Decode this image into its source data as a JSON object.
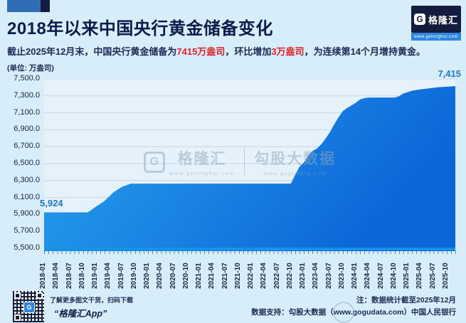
{
  "header": {
    "title": "2018年以来中国央行黄金储备变化",
    "logo": {
      "symbol": "G",
      "name": "格隆汇",
      "url": "www.gelonghui.com"
    }
  },
  "subtitle": {
    "part1": "截止2025年12月末，中国央行黄金储备为",
    "highlight1": "7415万盎司",
    "part2": "，环比增加",
    "highlight2": "3万盎司",
    "part3": "，为连续第14个月增持黄金。"
  },
  "chart_data": {
    "type": "area",
    "title": "2018年以来中国央行黄金储备变化",
    "unit_label": "(单位: 万盎司)",
    "ylabel": "万盎司",
    "ylim": [
      5500,
      7500
    ],
    "y_tick_step": 200,
    "grid": true,
    "y_tick_labels": [
      "7,500.0",
      "7,300.0",
      "7,100.0",
      "6,900.0",
      "6,700.0",
      "6,500.0",
      "6,300.0",
      "6,100.0",
      "5,900.0",
      "5,700.0",
      "5,500.0"
    ],
    "x_tick_labels": [
      "2018-01",
      "2018-04",
      "2018-07",
      "2018-10",
      "2019-01",
      "2019-04",
      "2019-07",
      "2019-10",
      "2020-01",
      "2020-04",
      "2020-07",
      "2020-10",
      "2021-01",
      "2021-04",
      "2021-07",
      "2021-10",
      "2022-01",
      "2022-04",
      "2022-07",
      "2022-10",
      "2023-01",
      "2023-04",
      "2023-07",
      "2023-10",
      "2024-01",
      "2024-04",
      "2024-07",
      "2024-10",
      "2025-01",
      "2025-04",
      "2025-07",
      "2025-10"
    ],
    "x_tick_every_n_months": 3,
    "x": [
      "2018-01",
      "2018-02",
      "2018-03",
      "2018-04",
      "2018-05",
      "2018-06",
      "2018-07",
      "2018-08",
      "2018-09",
      "2018-10",
      "2018-11",
      "2018-12",
      "2019-01",
      "2019-02",
      "2019-03",
      "2019-04",
      "2019-05",
      "2019-06",
      "2019-07",
      "2019-08",
      "2019-09",
      "2019-10",
      "2019-11",
      "2019-12",
      "2020-01",
      "2020-02",
      "2020-03",
      "2020-04",
      "2020-05",
      "2020-06",
      "2020-07",
      "2020-08",
      "2020-09",
      "2020-10",
      "2020-11",
      "2020-12",
      "2021-01",
      "2021-02",
      "2021-03",
      "2021-04",
      "2021-05",
      "2021-06",
      "2021-07",
      "2021-08",
      "2021-09",
      "2021-10",
      "2021-11",
      "2021-12",
      "2022-01",
      "2022-02",
      "2022-03",
      "2022-04",
      "2022-05",
      "2022-06",
      "2022-07",
      "2022-08",
      "2022-09",
      "2022-10",
      "2022-11",
      "2022-12",
      "2023-01",
      "2023-02",
      "2023-03",
      "2023-04",
      "2023-05",
      "2023-06",
      "2023-07",
      "2023-08",
      "2023-09",
      "2023-10",
      "2023-11",
      "2023-12",
      "2024-01",
      "2024-02",
      "2024-03",
      "2024-04",
      "2024-05",
      "2024-06",
      "2024-07",
      "2024-08",
      "2024-09",
      "2024-10",
      "2024-11",
      "2024-12",
      "2025-01",
      "2025-02",
      "2025-03",
      "2025-04",
      "2025-05",
      "2025-06",
      "2025-07",
      "2025-08",
      "2025-09",
      "2025-10",
      "2025-11",
      "2025-12"
    ],
    "values": [
      5924,
      5924,
      5924,
      5924,
      5924,
      5924,
      5924,
      5924,
      5924,
      5924,
      5924,
      5956,
      5994,
      6026,
      6062,
      6110,
      6161,
      6194,
      6226,
      6245,
      6264,
      6264,
      6264,
      6264,
      6264,
      6264,
      6264,
      6264,
      6264,
      6264,
      6264,
      6264,
      6264,
      6264,
      6264,
      6264,
      6264,
      6264,
      6264,
      6264,
      6264,
      6264,
      6264,
      6264,
      6264,
      6264,
      6264,
      6264,
      6264,
      6264,
      6264,
      6264,
      6264,
      6264,
      6264,
      6264,
      6264,
      6264,
      6367,
      6464,
      6512,
      6592,
      6650,
      6676,
      6727,
      6795,
      6869,
      6962,
      7046,
      7120,
      7158,
      7187,
      7219,
      7258,
      7274,
      7280,
      7280,
      7280,
      7280,
      7280,
      7280,
      7280,
      7296,
      7329,
      7345,
      7361,
      7370,
      7377,
      7383,
      7390,
      7396,
      7402,
      7406,
      7409,
      7412,
      7415
    ],
    "first_point_label": "5,924",
    "last_point_label": "7,415",
    "colors": {
      "background": "#d8edfa",
      "plot_background": "#e6f2fb",
      "grid": "#c6d6e4",
      "area_gradient_start": "#2aa4ed",
      "area_gradient_end": "#0b66d8",
      "axis_line": "#1592ea",
      "point_label_blue": "#1a78d2",
      "highlight_red": "#e02227",
      "dark_navy": "#0d1b4a"
    }
  },
  "watermark": {
    "symbol": "G",
    "brand": "格隆汇",
    "brand_url": "www.gelonghui.com",
    "product": "勾股大数据",
    "product_url": "www.gogudata.com"
  },
  "footer": {
    "qr_symbol": "G",
    "qr_caption_line1": "了解更多图文干货，扫码下载",
    "qr_caption_line2": "“格隆汇App”",
    "note_line1": "注：数据统计截至2025年12月",
    "note_line2": "数据支持：勾股大数据（www.gogudata.com）中国人民银行"
  }
}
